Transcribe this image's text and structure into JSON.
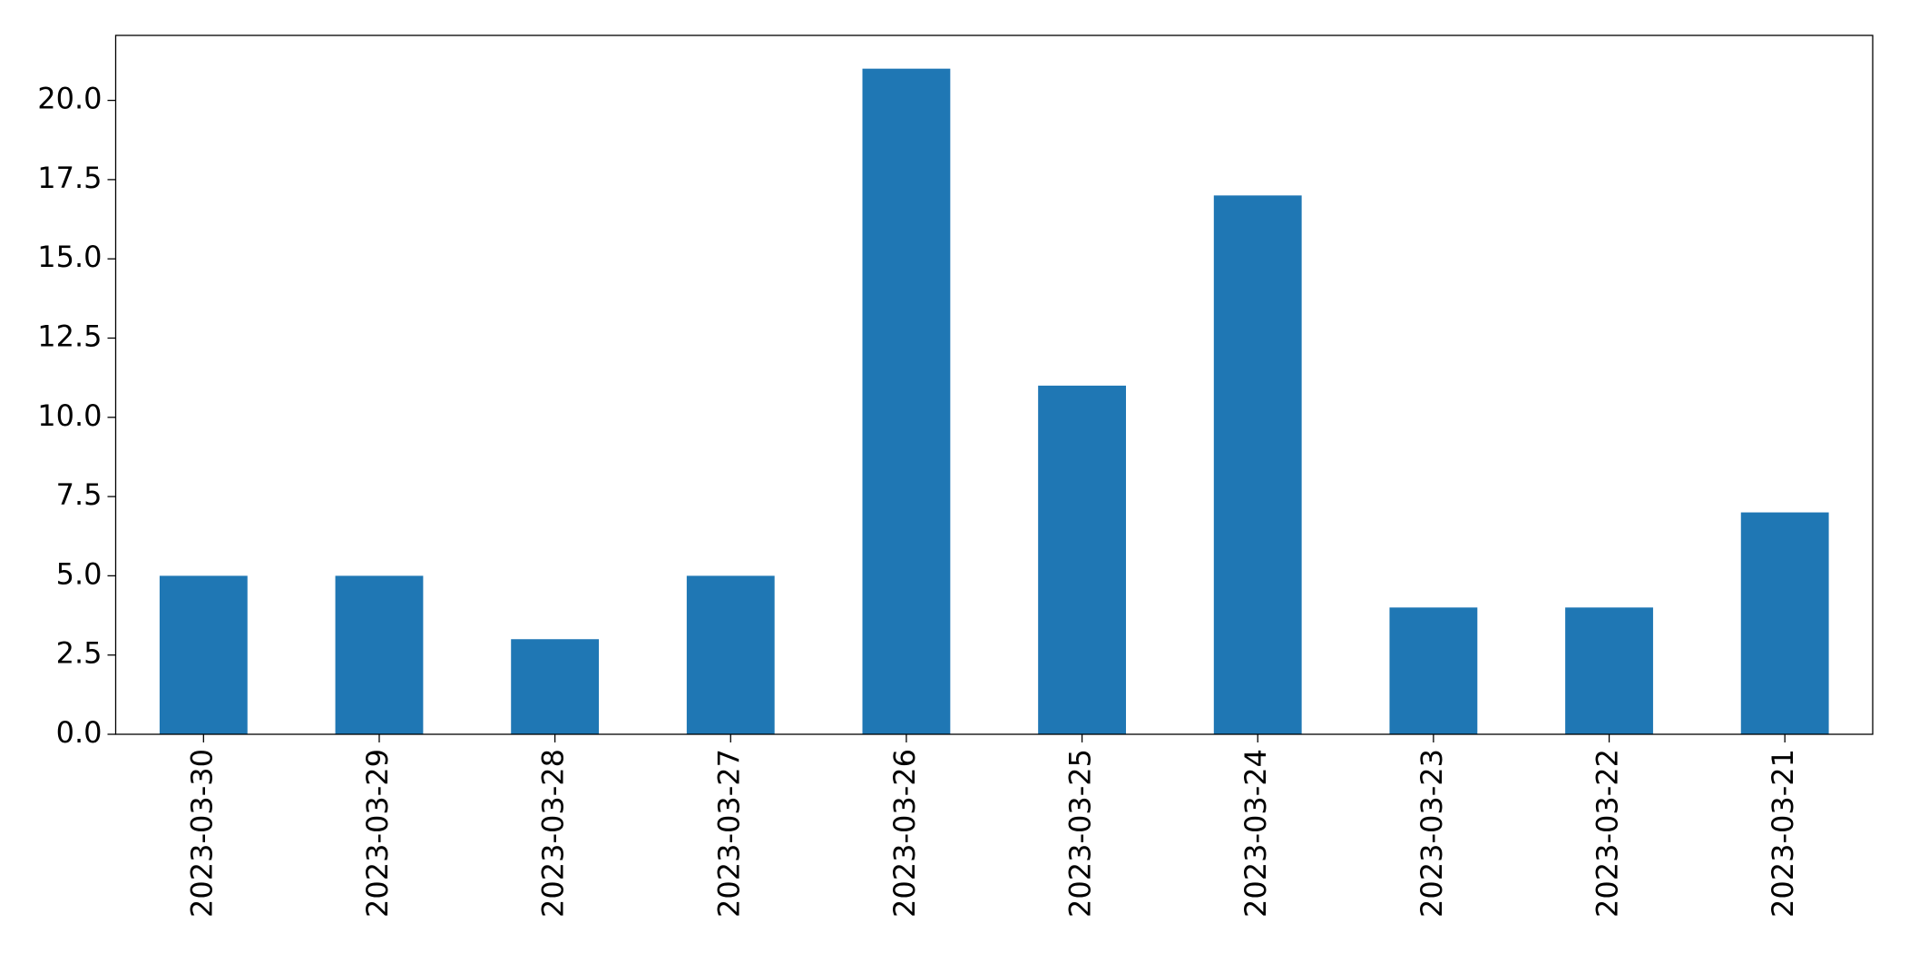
{
  "chart_data": {
    "type": "bar",
    "categories": [
      "2023-03-30",
      "2023-03-29",
      "2023-03-28",
      "2023-03-27",
      "2023-03-26",
      "2023-03-25",
      "2023-03-24",
      "2023-03-23",
      "2023-03-22",
      "2023-03-21"
    ],
    "values": [
      5,
      5,
      3,
      5,
      21,
      11,
      17,
      4,
      4,
      7
    ],
    "color": "#1f77b4",
    "ylim": [
      0,
      22.05
    ],
    "yticks": [
      {
        "value": 0,
        "label": "0.0"
      },
      {
        "value": 2.5,
        "label": "2.5"
      },
      {
        "value": 5,
        "label": "5.0"
      },
      {
        "value": 7.5,
        "label": "7.5"
      },
      {
        "value": 10,
        "label": "10.0"
      },
      {
        "value": 12.5,
        "label": "12.5"
      },
      {
        "value": 15,
        "label": "15.0"
      },
      {
        "value": 17.5,
        "label": "17.5"
      },
      {
        "value": 20,
        "label": "20.0"
      }
    ]
  }
}
